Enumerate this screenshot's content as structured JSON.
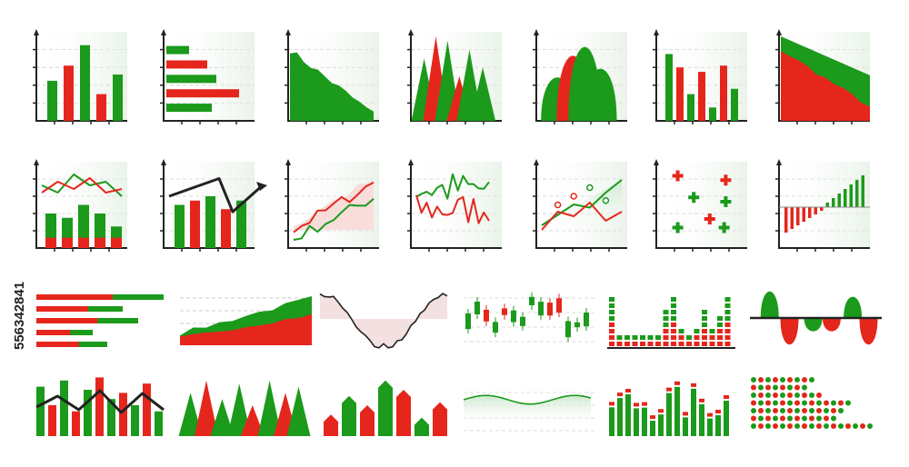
{
  "stock_id": "556342841"
}
